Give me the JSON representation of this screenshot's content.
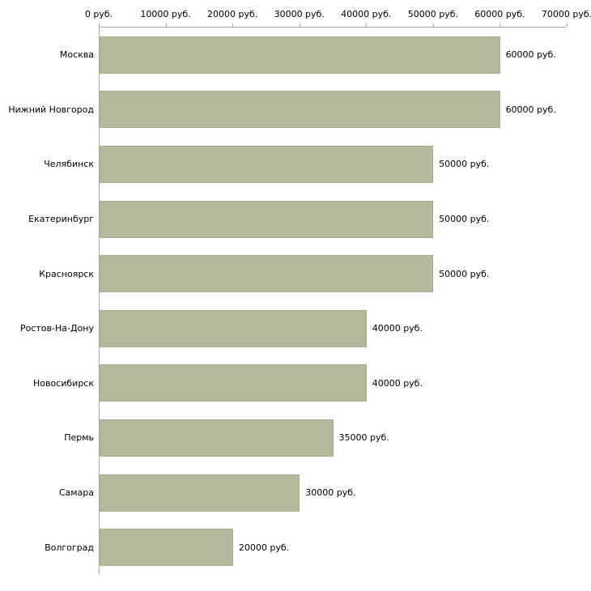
{
  "chart_data": {
    "type": "bar",
    "orientation": "horizontal",
    "title": "",
    "xlabel": "",
    "ylabel": "",
    "grid": false,
    "legend": "none",
    "xlim": [
      0,
      70000
    ],
    "x_ticks": [
      "0 руб.",
      "10000 руб.",
      "20000 руб.",
      "30000 руб.",
      "40000 руб.",
      "50000 руб.",
      "60000 руб.",
      "70000 руб."
    ],
    "x_tick_values": [
      0,
      10000,
      20000,
      30000,
      40000,
      50000,
      60000,
      70000
    ],
    "categories": [
      "Москва",
      "Нижний Новгород",
      "Челябинск",
      "Екатеринбург",
      "Красноярск",
      "Ростов-На-Дону",
      "Новосибирск",
      "Пермь",
      "Самара",
      "Волгоград"
    ],
    "values": [
      60000,
      60000,
      50000,
      50000,
      50000,
      40000,
      40000,
      35000,
      30000,
      20000
    ],
    "value_labels": [
      "60000 руб.",
      "60000 руб.",
      "50000 руб.",
      "50000 руб.",
      "50000 руб.",
      "40000 руб.",
      "40000 руб.",
      "35000 руб.",
      "30000 руб.",
      "20000 руб."
    ],
    "bar_color": "#b3ba9b",
    "axis_color": "#a9a9a9",
    "background_color": "#ffffff"
  }
}
